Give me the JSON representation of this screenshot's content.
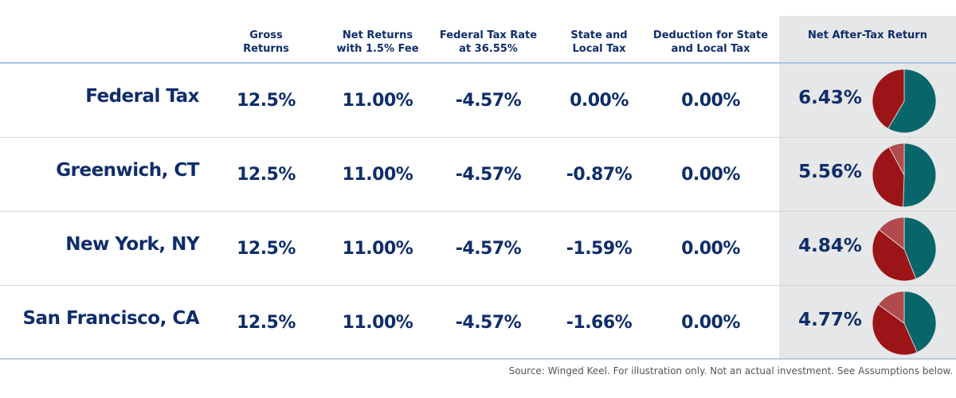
{
  "colors": {
    "navy": "#0f2d6b",
    "teal": "#08666a",
    "red": "#9b1518",
    "pink": "#b04a4e",
    "gray": "#e6e7e8"
  },
  "headers": {
    "gross": "Gross\nReturns",
    "net": "Net Returns\nwith 1.5% Fee",
    "federal": "Federal Tax Rate\nat 36.55%",
    "state": "State and\nLocal Tax",
    "deduction": "Deduction for State\nand Local Tax",
    "after_tax": "Net After-Tax Return"
  },
  "chart_data": {
    "type": "table",
    "rows": [
      {
        "label": "Federal Tax",
        "gross": "12.5%",
        "net": "11.00%",
        "federal": "-4.57%",
        "state": "0.00%",
        "deduction": "0.00%",
        "after_tax": "6.43%",
        "pie": {
          "after_tax": 6.43,
          "federal": 4.57,
          "state": 0.0
        }
      },
      {
        "label": "Greenwich, CT",
        "gross": "12.5%",
        "net": "11.00%",
        "federal": "-4.57%",
        "state": "-0.87%",
        "deduction": "0.00%",
        "after_tax": "5.56%",
        "pie": {
          "after_tax": 5.56,
          "federal": 4.57,
          "state": 0.87
        }
      },
      {
        "label": "New York, NY",
        "gross": "12.5%",
        "net": "11.00%",
        "federal": "-4.57%",
        "state": "-1.59%",
        "deduction": "0.00%",
        "after_tax": "4.84%",
        "pie": {
          "after_tax": 4.84,
          "federal": 4.57,
          "state": 1.59
        }
      },
      {
        "label": "San Francisco, CA",
        "gross": "12.5%",
        "net": "11.00%",
        "federal": "-4.57%",
        "state": "-1.66%",
        "deduction": "0.00%",
        "after_tax": "4.77%",
        "pie": {
          "after_tax": 4.77,
          "federal": 4.57,
          "state": 1.66
        }
      }
    ]
  },
  "footer": "Source: Winged Keel. For illustration only. Not an actual investment. See Assumptions below."
}
